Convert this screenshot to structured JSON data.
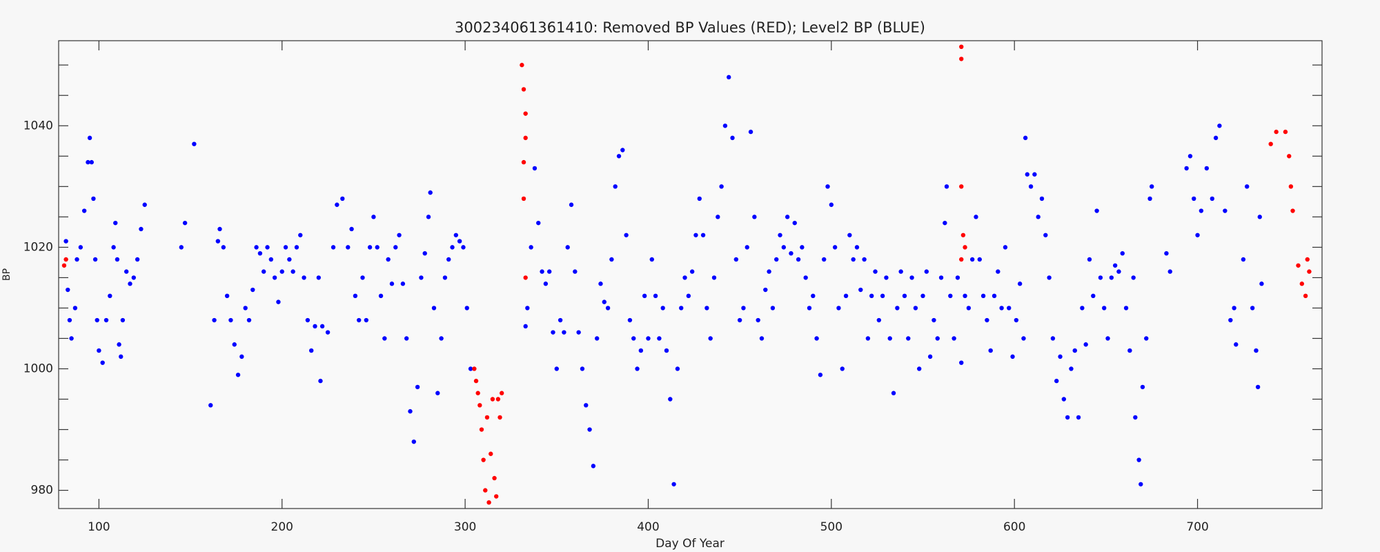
{
  "chart_data": {
    "type": "scatter",
    "title": "300234061361410: Removed BP Values (RED); Level2 BP (BLUE)",
    "xlabel": "Day Of Year",
    "ylabel": "BP",
    "xlim": [
      78,
      768
    ],
    "ylim": [
      977,
      1054
    ],
    "xticks": [
      100,
      200,
      300,
      400,
      500,
      600,
      700
    ],
    "yticks": [
      980,
      1000,
      1020,
      1040
    ],
    "yminorticks": [
      985,
      990,
      995,
      1005,
      1010,
      1015,
      1025,
      1030,
      1035,
      1045,
      1050
    ],
    "series": [
      {
        "color": "#0000ff",
        "x": [
          82,
          83,
          84,
          85,
          87,
          88,
          90,
          92,
          94,
          95,
          96,
          97,
          98,
          99,
          100,
          102,
          104,
          106,
          108,
          109,
          110,
          111,
          112,
          113,
          115,
          117,
          119,
          121,
          123,
          125,
          145,
          147,
          152,
          161,
          163,
          165,
          166,
          168,
          170,
          172,
          174,
          176,
          178,
          180,
          182,
          184,
          186,
          188,
          190,
          192,
          194,
          196,
          198,
          200,
          202,
          204,
          206,
          208,
          210,
          212,
          214,
          216,
          218,
          220,
          221,
          222,
          225,
          228,
          230,
          233,
          236,
          238,
          240,
          242,
          244,
          246,
          248,
          250,
          252,
          254,
          256,
          258,
          260,
          262,
          264,
          266,
          268,
          270,
          272,
          274,
          276,
          278,
          280,
          281,
          283,
          285,
          287,
          289,
          291,
          293,
          295,
          297,
          299,
          301,
          303,
          333,
          334,
          336,
          338,
          340,
          342,
          344,
          346,
          348,
          350,
          352,
          354,
          356,
          358,
          360,
          362,
          364,
          366,
          368,
          370,
          372,
          374,
          376,
          378,
          380,
          382,
          384,
          386,
          388,
          390,
          392,
          394,
          396,
          398,
          400,
          402,
          404,
          406,
          408,
          410,
          412,
          414,
          416,
          418,
          420,
          422,
          424,
          426,
          428,
          430,
          432,
          434,
          436,
          438,
          440,
          442,
          444,
          446,
          448,
          450,
          452,
          454,
          456,
          458,
          460,
          462,
          464,
          466,
          468,
          470,
          472,
          474,
          476,
          478,
          480,
          482,
          484,
          486,
          488,
          490,
          492,
          494,
          496,
          498,
          500,
          502,
          504,
          506,
          508,
          510,
          512,
          514,
          516,
          518,
          520,
          522,
          524,
          526,
          528,
          530,
          532,
          534,
          536,
          538,
          540,
          542,
          544,
          546,
          548,
          550,
          552,
          554,
          556,
          558,
          560,
          562,
          563,
          565,
          567,
          569,
          571,
          573,
          575,
          577,
          579,
          581,
          583,
          585,
          587,
          589,
          591,
          593,
          595,
          597,
          599,
          601,
          603,
          605,
          606,
          607,
          609,
          611,
          613,
          615,
          617,
          619,
          621,
          623,
          625,
          627,
          629,
          631,
          633,
          635,
          637,
          639,
          641,
          643,
          645,
          647,
          649,
          651,
          653,
          655,
          657,
          659,
          661,
          663,
          665,
          666,
          668,
          669,
          670,
          672,
          674,
          675,
          683,
          685,
          694,
          696,
          698,
          700,
          702,
          705,
          708,
          710,
          712,
          715,
          718,
          720,
          721,
          725,
          727,
          730,
          732,
          733,
          734,
          735
        ],
        "values": [
          1021,
          1013,
          1008,
          1005,
          1010,
          1018,
          1020,
          1026,
          1034,
          1038,
          1034,
          1028,
          1018,
          1008,
          1003,
          1001,
          1008,
          1012,
          1020,
          1024,
          1018,
          1004,
          1002,
          1008,
          1016,
          1014,
          1015,
          1018,
          1023,
          1027,
          1020,
          1024,
          1037,
          994,
          1008,
          1021,
          1023,
          1020,
          1012,
          1008,
          1004,
          999,
          1002,
          1010,
          1008,
          1013,
          1020,
          1019,
          1016,
          1020,
          1018,
          1015,
          1011,
          1016,
          1020,
          1018,
          1016,
          1020,
          1022,
          1015,
          1008,
          1003,
          1007,
          1015,
          998,
          1007,
          1006,
          1020,
          1027,
          1028,
          1020,
          1023,
          1012,
          1008,
          1015,
          1008,
          1020,
          1025,
          1020,
          1012,
          1005,
          1018,
          1014,
          1020,
          1022,
          1014,
          1005,
          993,
          988,
          997,
          1015,
          1019,
          1025,
          1029,
          1010,
          996,
          1005,
          1015,
          1018,
          1020,
          1022,
          1021,
          1020,
          1010,
          1000,
          1007,
          1010,
          1020,
          1033,
          1024,
          1016,
          1014,
          1016,
          1006,
          1000,
          1008,
          1006,
          1020,
          1027,
          1016,
          1006,
          1000,
          994,
          990,
          984,
          1005,
          1014,
          1011,
          1010,
          1018,
          1030,
          1035,
          1036,
          1022,
          1008,
          1005,
          1000,
          1003,
          1012,
          1005,
          1018,
          1012,
          1005,
          1010,
          1003,
          995,
          981,
          1000,
          1010,
          1015,
          1012,
          1016,
          1022,
          1028,
          1022,
          1010,
          1005,
          1015,
          1025,
          1030,
          1040,
          1048,
          1038,
          1018,
          1008,
          1010,
          1020,
          1039,
          1025,
          1008,
          1005,
          1013,
          1016,
          1010,
          1018,
          1022,
          1020,
          1025,
          1019,
          1024,
          1018,
          1020,
          1015,
          1010,
          1012,
          1005,
          999,
          1018,
          1030,
          1027,
          1020,
          1010,
          1000,
          1012,
          1022,
          1018,
          1020,
          1013,
          1018,
          1005,
          1012,
          1016,
          1008,
          1012,
          1015,
          1005,
          996,
          1010,
          1016,
          1012,
          1005,
          1015,
          1010,
          1000,
          1012,
          1016,
          1002,
          1008,
          1005,
          1015,
          1024,
          1030,
          1012,
          1005,
          1015,
          1001,
          1012,
          1010,
          1018,
          1025,
          1018,
          1012,
          1008,
          1003,
          1012,
          1016,
          1010,
          1020,
          1010,
          1002,
          1008,
          1014,
          1005,
          1038,
          1032,
          1030,
          1032,
          1025,
          1028,
          1022,
          1015,
          1005,
          998,
          1002,
          995,
          992,
          1000,
          1003,
          992,
          1010,
          1004,
          1018,
          1012,
          1026,
          1015,
          1010,
          1005,
          1015,
          1017,
          1016,
          1019,
          1010,
          1003,
          1015,
          992,
          985,
          981,
          997,
          1005,
          1028,
          1030,
          1019,
          1016,
          1033,
          1035,
          1028,
          1022,
          1026,
          1033,
          1028,
          1038,
          1040,
          1026,
          1008,
          1010,
          1004,
          1018,
          1030,
          1010,
          1003,
          997,
          1025,
          1014
        ]
      },
      {
        "color": "#ff0000",
        "x": [
          81,
          82,
          305,
          306,
          307,
          308,
          309,
          310,
          311,
          312,
          313,
          314,
          315,
          316,
          317,
          318,
          319,
          320,
          331,
          332,
          333,
          332,
          333,
          332,
          333,
          571,
          571,
          571,
          572,
          571,
          573,
          740,
          743,
          748,
          750,
          751,
          752,
          755,
          757,
          759,
          760,
          761
        ],
        "values": [
          1017,
          1018,
          1000,
          998,
          996,
          994,
          990,
          985,
          980,
          992,
          978,
          986,
          995,
          982,
          979,
          995,
          992,
          996,
          1050,
          1046,
          1042,
          1034,
          1038,
          1028,
          1015,
          1053,
          1051,
          1030,
          1022,
          1018,
          1020,
          1037,
          1039,
          1039,
          1035,
          1030,
          1026,
          1017,
          1014,
          1012,
          1018,
          1016
        ]
      }
    ]
  }
}
